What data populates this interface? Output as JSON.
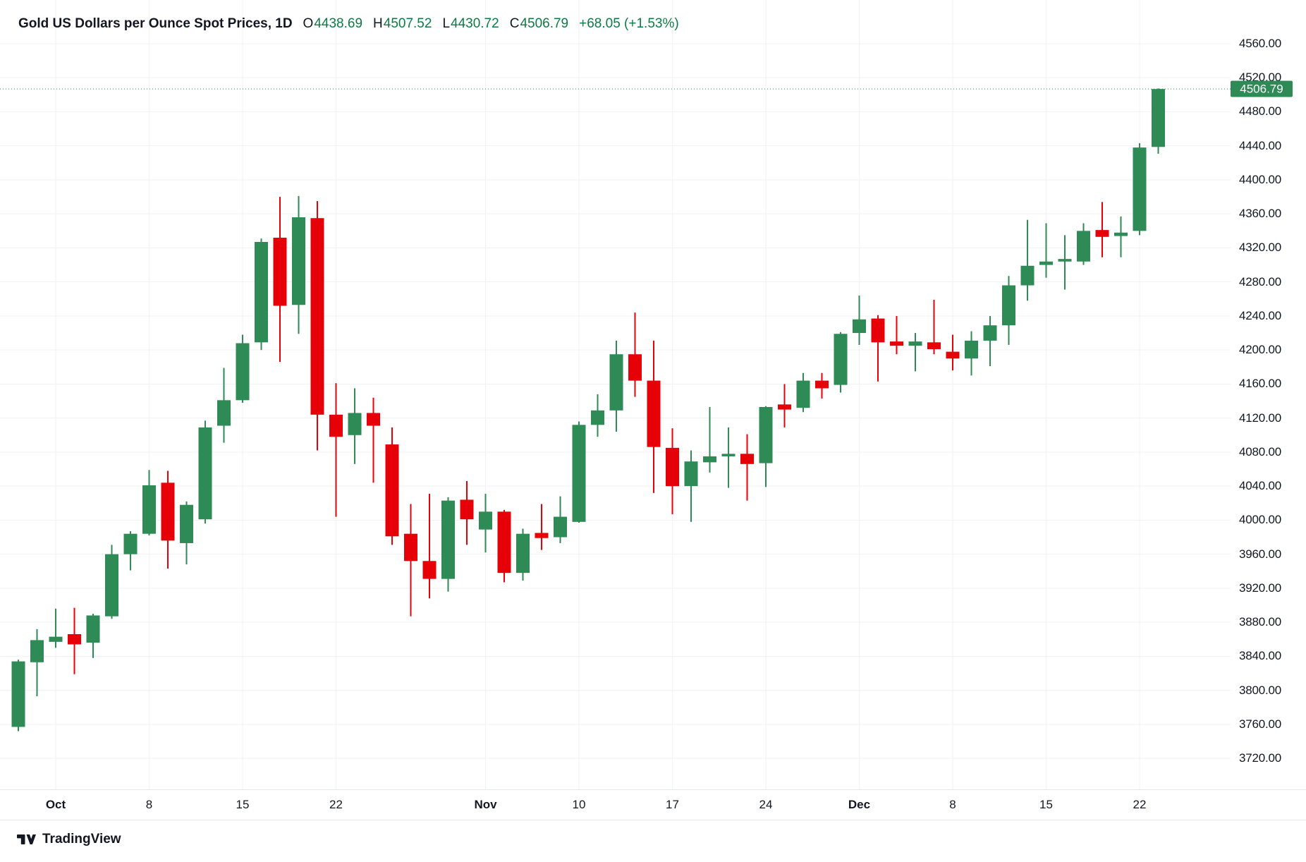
{
  "header": {
    "title": "Gold US Dollars per Ounce Spot Prices, 1D",
    "ohlc": {
      "open_label": "O",
      "open": "4438.69",
      "high_label": "H",
      "high": "4507.52",
      "low_label": "L",
      "low": "4430.72",
      "close_label": "C",
      "close": "4506.79"
    },
    "change": "+68.05 (+1.53%)"
  },
  "footer": {
    "brand": "TradingView"
  },
  "colors": {
    "up": "#2e8b56",
    "down": "#e60008",
    "header_value": "#0c7b43",
    "text": "#131722",
    "grid": "#f0f2f5",
    "axis_border": "#e4e7ec",
    "badge_bg": "#2e8b56",
    "badge_text": "#ffffff",
    "price_line": "#2e8b56"
  },
  "price_axis": {
    "tick_labels": [
      "4560.00",
      "4520.00",
      "4480.00",
      "4440.00",
      "4400.00",
      "4360.00",
      "4320.00",
      "4280.00",
      "4240.00",
      "4200.00",
      "4160.00",
      "4120.00",
      "4080.00",
      "4040.00",
      "4000.00",
      "3960.00",
      "3920.00",
      "3880.00",
      "3840.00",
      "3800.00",
      "3760.00",
      "3720.00"
    ],
    "tick_values": [
      4560,
      4520,
      4480,
      4440,
      4400,
      4360,
      4320,
      4280,
      4240,
      4200,
      4160,
      4120,
      4080,
      4040,
      4000,
      3960,
      3920,
      3880,
      3840,
      3800,
      3760,
      3720
    ],
    "current_price_label": "4506.79"
  },
  "time_axis": {
    "labels": [
      {
        "text": "Oct",
        "bold": true,
        "candle": 2
      },
      {
        "text": "8",
        "bold": false,
        "candle": 7
      },
      {
        "text": "15",
        "bold": false,
        "candle": 12
      },
      {
        "text": "22",
        "bold": false,
        "candle": 17
      },
      {
        "text": "Nov",
        "bold": true,
        "candle": 25
      },
      {
        "text": "10",
        "bold": false,
        "candle": 30
      },
      {
        "text": "17",
        "bold": false,
        "candle": 35
      },
      {
        "text": "24",
        "bold": false,
        "candle": 40
      },
      {
        "text": "Dec",
        "bold": true,
        "candle": 45
      },
      {
        "text": "8",
        "bold": false,
        "candle": 50
      },
      {
        "text": "15",
        "bold": false,
        "candle": 55
      },
      {
        "text": "22",
        "bold": false,
        "candle": 60
      }
    ]
  },
  "chart_data": {
    "type": "candlestick",
    "title": "Gold US Dollars per Ounce Spot Prices, 1D",
    "timeframe": "1D",
    "ylabel": "US Dollars per Ounce",
    "ylim": [
      3683.6,
      4611.4
    ],
    "grid": true,
    "legend_position": "top-left",
    "last_price": 4506.79,
    "ohlc_format": [
      "open",
      "high",
      "low",
      "close"
    ],
    "candles": [
      [
        3757,
        3836,
        3752,
        3834
      ],
      [
        3833,
        3872,
        3793,
        3859
      ],
      [
        3857,
        3896,
        3850,
        3863
      ],
      [
        3866,
        3897,
        3819,
        3854
      ],
      [
        3856,
        3890,
        3838,
        3888
      ],
      [
        3887,
        3971,
        3884,
        3960
      ],
      [
        3960,
        3987,
        3941,
        3984
      ],
      [
        3984,
        4059,
        3982,
        4041
      ],
      [
        4044,
        4058,
        3943,
        3976
      ],
      [
        3973,
        4022,
        3948,
        4018
      ],
      [
        4001,
        4117,
        3996,
        4109
      ],
      [
        4111,
        4179,
        4091,
        4141
      ],
      [
        4141,
        4218,
        4138,
        4208
      ],
      [
        4209,
        4331,
        4200,
        4327
      ],
      [
        4332,
        4380,
        4186,
        4252
      ],
      [
        4253,
        4381,
        4219,
        4356
      ],
      [
        4355,
        4375,
        4082,
        4124
      ],
      [
        4124,
        4161,
        4004,
        4098
      ],
      [
        4100,
        4155,
        4066,
        4126
      ],
      [
        4126,
        4144,
        4044,
        4111
      ],
      [
        4089,
        4109,
        3971,
        3981
      ],
      [
        3984,
        4019,
        3887,
        3952
      ],
      [
        3952,
        4031,
        3908,
        3931
      ],
      [
        3931,
        4027,
        3916,
        4023
      ],
      [
        4024,
        4046,
        3971,
        4001
      ],
      [
        3989,
        4031,
        3962,
        4010
      ],
      [
        4010,
        4012,
        3927,
        3938
      ],
      [
        3938,
        3990,
        3929,
        3984
      ],
      [
        3985,
        4019,
        3965,
        3979
      ],
      [
        3980,
        4028,
        3973,
        4004
      ],
      [
        3998,
        4116,
        3997,
        4112
      ],
      [
        4112,
        4148,
        4098,
        4129
      ],
      [
        4129,
        4211,
        4104,
        4195
      ],
      [
        4195,
        4244,
        4145,
        4164
      ],
      [
        4164,
        4211,
        4032,
        4086
      ],
      [
        4085,
        4108,
        4007,
        4040
      ],
      [
        4040,
        4082,
        3998,
        4069
      ],
      [
        4068,
        4133,
        4056,
        4075
      ],
      [
        4075,
        4109,
        4038,
        4078
      ],
      [
        4078,
        4101,
        4023,
        4066
      ],
      [
        4067,
        4134,
        4039,
        4133
      ],
      [
        4136,
        4160,
        4109,
        4130
      ],
      [
        4132,
        4173,
        4127,
        4164
      ],
      [
        4164,
        4173,
        4143,
        4155
      ],
      [
        4159,
        4221,
        4150,
        4219
      ],
      [
        4220,
        4264,
        4206,
        4236
      ],
      [
        4237,
        4241,
        4163,
        4209
      ],
      [
        4210,
        4240,
        4195,
        4205
      ],
      [
        4205,
        4220,
        4175,
        4210
      ],
      [
        4209,
        4259,
        4195,
        4201
      ],
      [
        4198,
        4218,
        4176,
        4190
      ],
      [
        4190,
        4222,
        4170,
        4211
      ],
      [
        4211,
        4240,
        4181,
        4229
      ],
      [
        4229,
        4287,
        4206,
        4276
      ],
      [
        4276,
        4353,
        4258,
        4299
      ],
      [
        4300,
        4349,
        4285,
        4304
      ],
      [
        4304,
        4335,
        4271,
        4307
      ],
      [
        4304,
        4349,
        4300,
        4340
      ],
      [
        4341,
        4374,
        4309,
        4333
      ],
      [
        4334,
        4357,
        4309,
        4338
      ],
      [
        4340,
        4443,
        4335,
        4438
      ],
      [
        4438.69,
        4507.52,
        4430.72,
        4506.79
      ]
    ]
  }
}
